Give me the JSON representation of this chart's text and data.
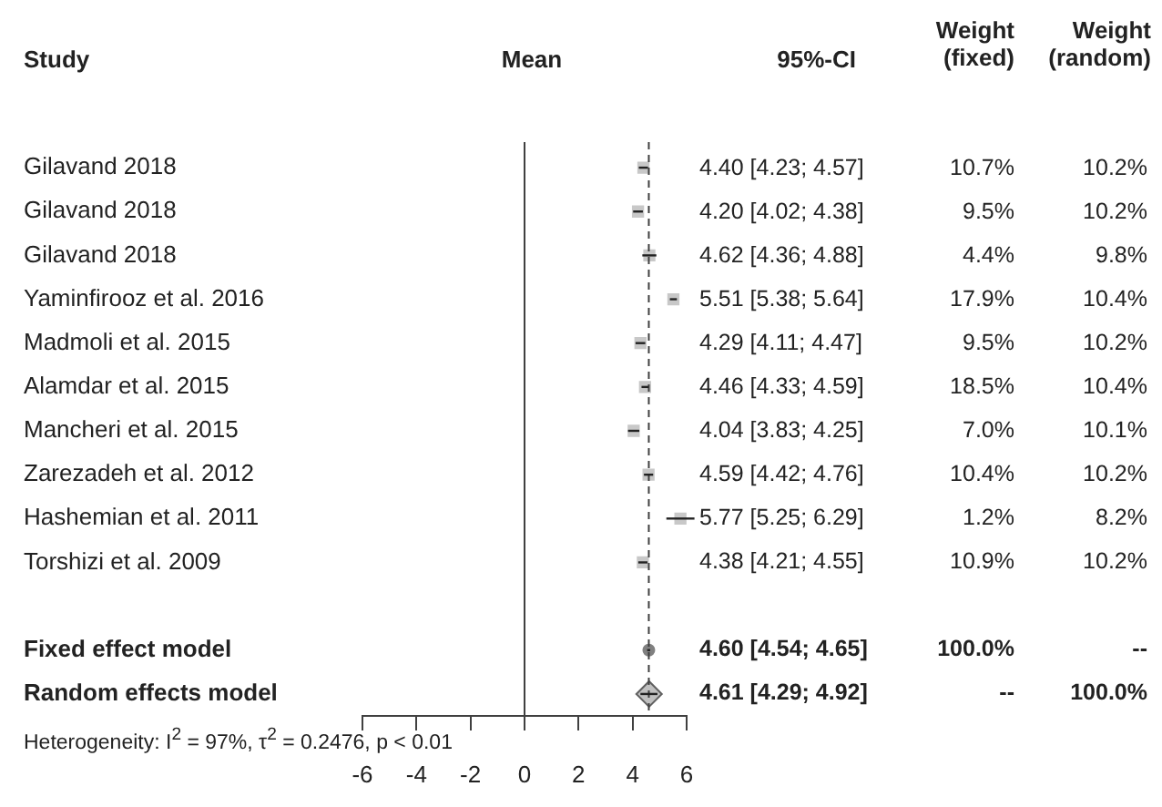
{
  "chart_data": {
    "type": "scatter",
    "orientation": "horizontal",
    "categories": [
      "Gilavand 2018",
      "Gilavand 2018",
      "Gilavand 2018",
      "Yaminfirooz et al. 2016",
      "Madmoli et al. 2015",
      "Alamdar et al. 2015",
      "Mancheri et al. 2015",
      "Zarezadeh et al. 2012",
      "Hashemian et al. 2011",
      "Torshizi et al. 2009",
      null,
      "Fixed effect model",
      "Random effects model"
    ],
    "series": [
      {
        "color": "#c8c8c8",
        "marker": "square",
        "values": [
          4.4,
          4.2,
          4.62,
          5.51,
          4.29,
          4.46,
          4.04,
          4.59,
          5.77,
          4.38,
          null,
          null,
          null
        ],
        "errors": [
          [
            4.23,
            4.57
          ],
          [
            4.02,
            4.38
          ],
          [
            4.36,
            4.88
          ],
          [
            5.38,
            5.64
          ],
          [
            4.11,
            4.47
          ],
          [
            4.33,
            4.59
          ],
          [
            3.83,
            4.25
          ],
          [
            4.42,
            4.76
          ],
          [
            5.25,
            6.29
          ],
          [
            4.21,
            4.55
          ],
          null,
          null,
          null
        ],
        "value_labels": [
          "4.40 [4.23; 4.57]",
          "4.20 [4.02; 4.38]",
          "4.62 [4.36; 4.88]",
          "5.51 [5.38; 5.64]",
          "4.29 [4.11; 4.47]",
          "4.46 [4.33; 4.59]",
          "4.04 [3.83; 4.25]",
          "4.59 [4.42; 4.76]",
          "5.77 [5.25; 6.29]",
          "4.38 [4.21; 4.55]",
          null,
          null,
          null
        ]
      },
      {
        "color": "#808080",
        "marker": "circle",
        "values": [
          null,
          null,
          null,
          null,
          null,
          null,
          null,
          null,
          null,
          null,
          null,
          4.6,
          null
        ],
        "errors": [
          null,
          null,
          null,
          null,
          null,
          null,
          null,
          null,
          null,
          null,
          null,
          [
            4.54,
            4.65
          ],
          null
        ],
        "value_labels": [
          null,
          null,
          null,
          null,
          null,
          null,
          null,
          null,
          null,
          null,
          null,
          "4.60 [4.54; 4.65]",
          null
        ]
      },
      {
        "color": "#c0c0c0",
        "marker": "diamond",
        "values": [
          null,
          null,
          null,
          null,
          null,
          null,
          null,
          null,
          null,
          null,
          null,
          null,
          4.61
        ],
        "errors": [
          null,
          null,
          null,
          null,
          null,
          null,
          null,
          null,
          null,
          null,
          null,
          null,
          [
            4.29,
            4.92
          ]
        ],
        "value_labels": [
          null,
          null,
          null,
          null,
          null,
          null,
          null,
          null,
          null,
          null,
          null,
          null,
          "4.61 [4.29; 4.92]"
        ]
      }
    ],
    "xlim": [
      -6,
      6
    ],
    "xticks": [
      -6,
      -4,
      -2,
      0,
      2,
      4,
      6
    ],
    "ref_lines": [
      {
        "axis": "x",
        "value": 0,
        "color": "#404040",
        "line_style": "solid"
      },
      {
        "axis": "x",
        "value": 4.6,
        "color": "#404040",
        "line_style": "dashed"
      }
    ],
    "annotations": [
      "Study",
      "Mean",
      "95%-CI",
      "Weight (fixed)",
      "Weight (random)",
      "Heterogeneity: I$^{2}$ = 97%, τ$^{2}$ = 0.2476, p < 0.01",
      "10.7%",
      "10.2%",
      "9.5%",
      "10.2%",
      "4.4%",
      "9.8%",
      "17.9%",
      "10.4%",
      "9.5%",
      "10.2%",
      "18.5%",
      "10.4%",
      "7.0%",
      "10.1%",
      "10.4%",
      "10.2%",
      "1.2%",
      "8.2%",
      "10.9%",
      "10.2%",
      "100.0%",
      "--",
      "--",
      "100.0%"
    ],
    "legend": false,
    "grid": false
  }
}
